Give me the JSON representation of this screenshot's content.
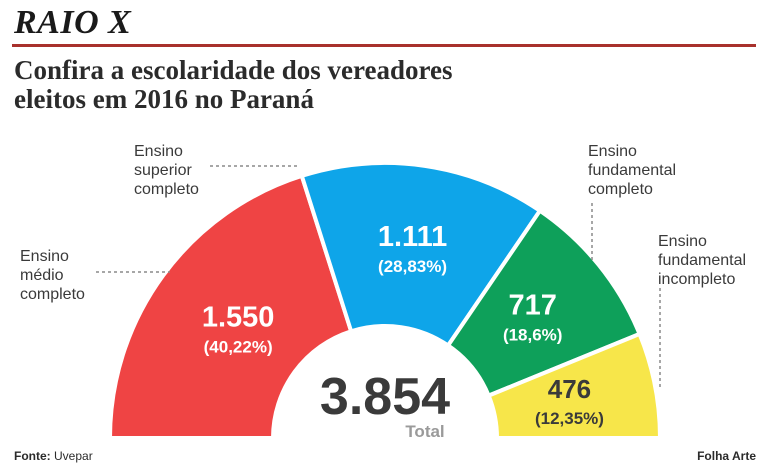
{
  "header": {
    "kicker": "RAIO X",
    "title_line1": "Confira a escolaridade dos vereadores",
    "title_line2": "eleitos em 2016 no Paraná"
  },
  "chart_data": {
    "type": "pie",
    "total_value": "3.854",
    "total_label": "Total",
    "slices": [
      {
        "label_lines": [
          "Ensino",
          "médio",
          "completo"
        ],
        "value": 1550,
        "value_text": "1.550",
        "pct_text": "(40,22%)",
        "color": "#ef4444"
      },
      {
        "label_lines": [
          "Ensino",
          "superior",
          "completo"
        ],
        "value": 1111,
        "value_text": "1.111",
        "pct_text": "(28,83%)",
        "color": "#0ea5e9"
      },
      {
        "label_lines": [
          "Ensino",
          "fundamental",
          "completo"
        ],
        "value": 717,
        "value_text": "717",
        "pct_text": "(18,6%)",
        "color": "#0ea05a"
      },
      {
        "label_lines": [
          "Ensino",
          "fundamental",
          "incompleto"
        ],
        "value": 476,
        "value_text": "476",
        "pct_text": "(12,35%)",
        "color": "#f7e64a"
      }
    ]
  },
  "footer": {
    "source_label": "Fonte:",
    "source_value": "Uvepar",
    "credit": "Folha Arte"
  }
}
